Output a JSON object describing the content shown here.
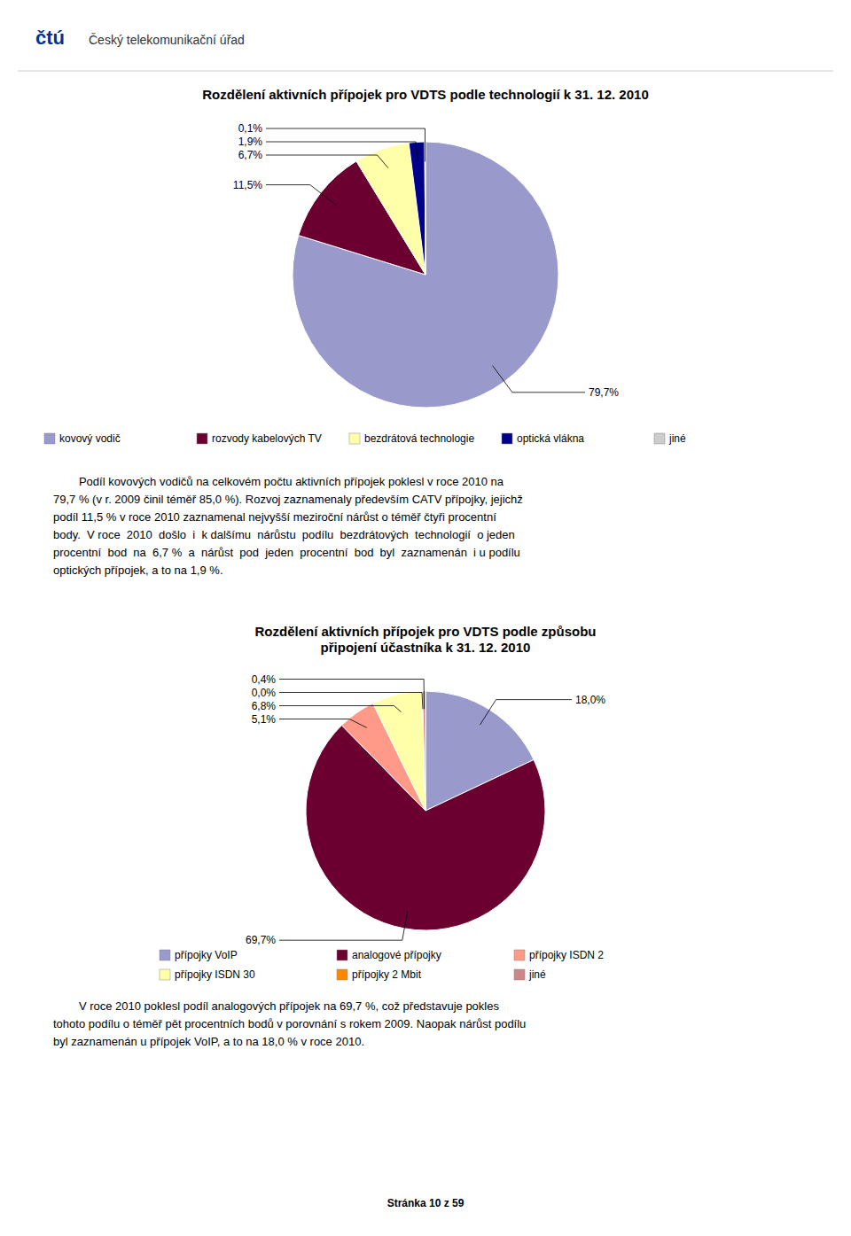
{
  "chart_data": [
    {
      "type": "pie",
      "title": "Rozdělení aktivních přípojek pro VDTS podle technologií k 31. 12. 2010",
      "categories": [
        "kovový vodič",
        "rozvody kabelových TV",
        "bezdrátová technologie",
        "optická vlákna",
        "jiné"
      ],
      "values": [
        79.7,
        11.5,
        6.7,
        1.9,
        0.1
      ],
      "value_labels": [
        "79,7%",
        "11,5%",
        "6,7%",
        "1,9%",
        "0,1%"
      ],
      "colors": [
        "#9999CC",
        "#6B0030",
        "#FFFFAA",
        "#00008B",
        "#CCCCCC"
      ],
      "data_labels": true,
      "legend": "bottom"
    },
    {
      "type": "pie",
      "title": "Rozdělení aktivních přípojek pro VDTS podle způsobu\npřipojení účastníka k 31. 12. 2010",
      "categories": [
        "přípojky VoIP",
        "analogové přípojky",
        "přípojky ISDN 2",
        "přípojky ISDN 30",
        "přípojky 2 Mbit",
        "jiné"
      ],
      "values": [
        18.0,
        69.7,
        5.1,
        6.8,
        0.05,
        0.4
      ],
      "value_labels": [
        "18,0%",
        "69,7%",
        "5,1%",
        "6,8%",
        "0,0%",
        "0,4%"
      ],
      "colors": [
        "#9999CC",
        "#6B0030",
        "#FF9988",
        "#FFFFAA",
        "#FF8800",
        "#CC8888"
      ],
      "data_labels": true,
      "legend": "bottom"
    }
  ],
  "logo_text": "čtú",
  "header_label": "Český telekomunikační úřad",
  "paragraphs": [
    [
      "        Podíl kovových vodičů na celkovém počtu aktivních přípojek poklesl v roce 2010 na",
      "79,7 % (v r. 2009 činil téměř 85,0 %). Rozvoj zaznamenaly především CATV přípojky, jejichž",
      "podíl 11,5 % v roce 2010 zaznamenal nejvyšší meziroční nárůst o téměř čtyři procentní",
      "body.  V roce  2010  došlo  i  k dalšímu  nárůstu  podílu  bezdrátových  technologií  o jeden",
      "procentní  bod  na  6,7 %  a  nárůst  pod  jeden  procentní  bod  byl  zaznamenán  i u podílu",
      "optických přípojek, a to na 1,9 %."
    ],
    [
      "        V roce 2010 poklesl podíl analogových přípojek na 69,7 %, což představuje pokles",
      "tohoto podílu o téměř pět procentních bodů v porovnání s rokem 2009. Naopak nárůst podílu",
      "byl zaznamenán u přípojek VoIP, a to na 18,0 % v roce 2010."
    ]
  ],
  "page_text": "Stránka 10 z 59"
}
